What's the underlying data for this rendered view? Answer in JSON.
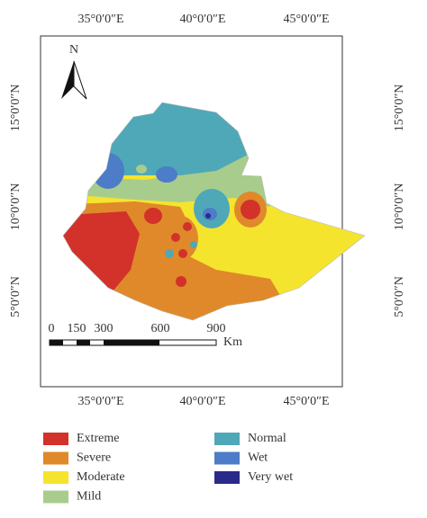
{
  "map": {
    "top_labels": [
      "35°0′0″E",
      "40°0′0″E",
      "45°0′0″E"
    ],
    "bottom_labels": [
      "35°0′0″E",
      "40°0′0″E",
      "45°0′0″E"
    ],
    "left_labels": [
      "15°0′0″N",
      "10°0′0″N",
      "5°0′0″N"
    ],
    "right_labels": [
      "15°0′0″N",
      "10°0′0″N",
      "5°0′0″N"
    ],
    "north": "N",
    "scale": {
      "labels": [
        "0",
        "150",
        "300",
        "600",
        "900"
      ],
      "unit": "Km"
    }
  },
  "legend": {
    "items": [
      {
        "label": "Extreme",
        "color": "#d2322a"
      },
      {
        "label": "Severe",
        "color": "#e0892a"
      },
      {
        "label": "Moderate",
        "color": "#f5e42e"
      },
      {
        "label": "Mild",
        "color": "#a8cc8c"
      },
      {
        "label": "Normal",
        "color": "#4fa8b8"
      },
      {
        "label": "Wet",
        "color": "#4d7cc8"
      },
      {
        "label": "Very wet",
        "color": "#2a2a8a"
      }
    ]
  }
}
